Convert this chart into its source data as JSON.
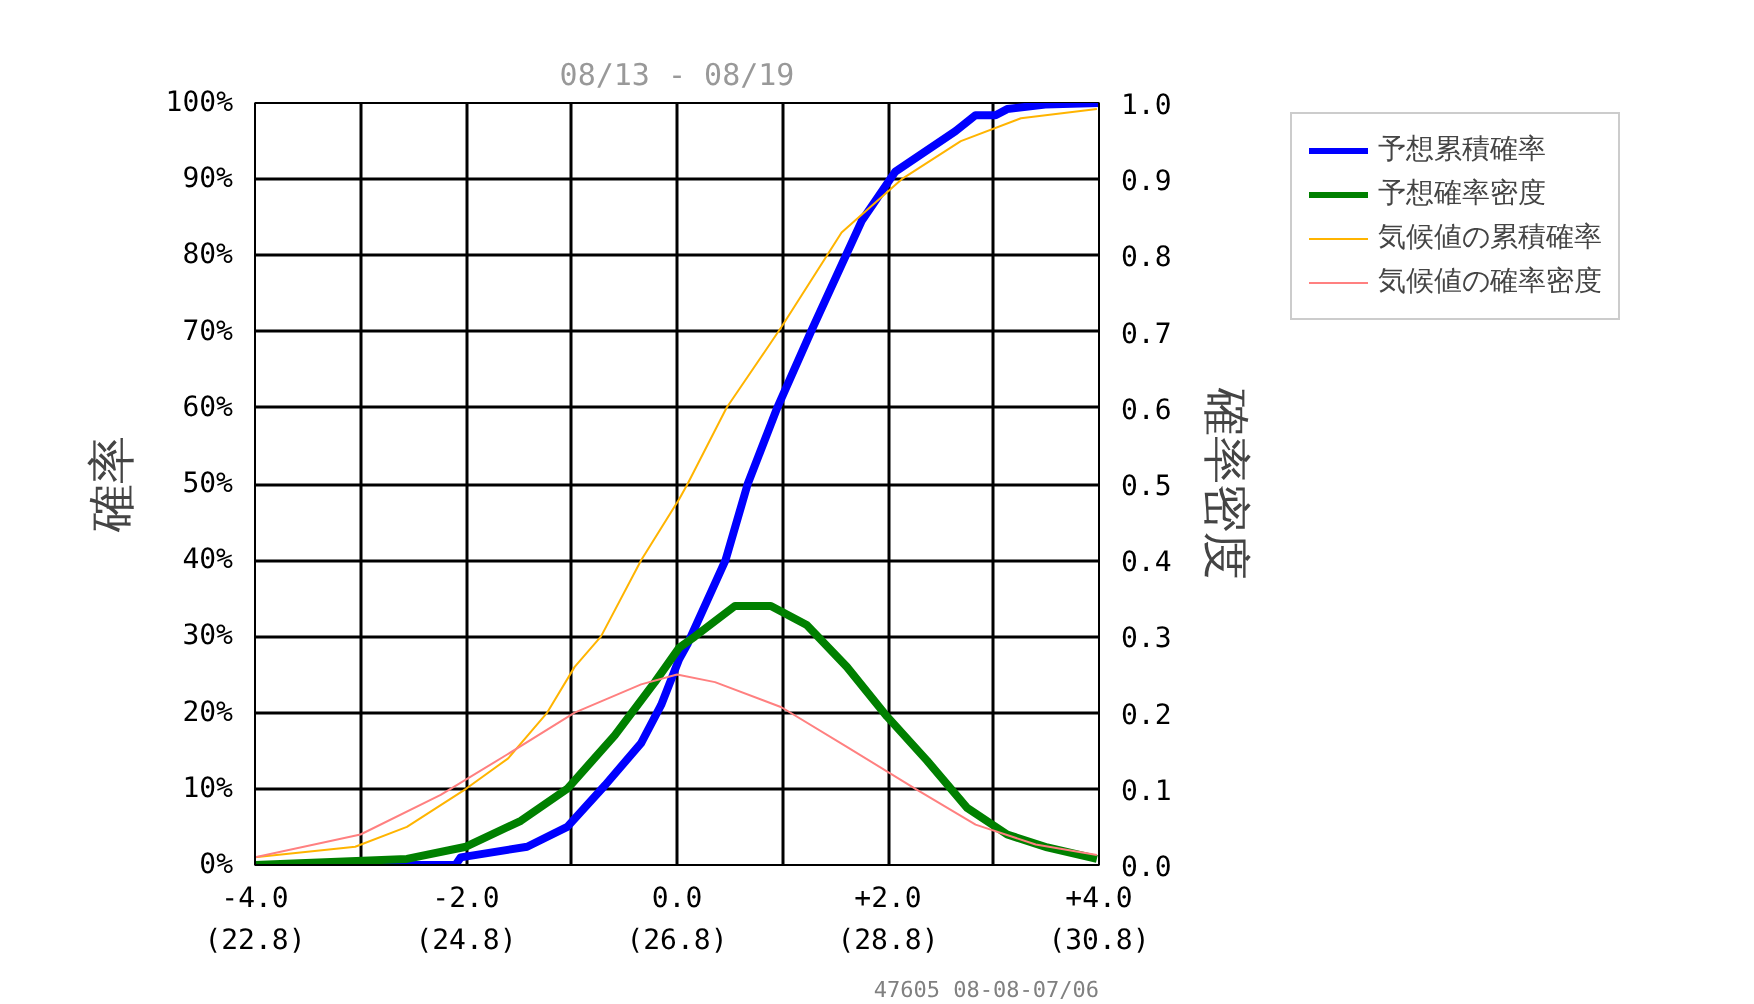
{
  "chart_data": {
    "type": "line",
    "title": "08/13 - 08/19",
    "ylabel": "確率",
    "y2label": "確率密度",
    "xlim": [
      -4,
      4
    ],
    "xticks": [
      {
        "value": -4,
        "label": "-4.0"
      },
      {
        "value": -3,
        "label": null
      },
      {
        "value": -2,
        "label": "-2.0"
      },
      {
        "value": -1,
        "label": null
      },
      {
        "value": 0,
        "label": "0.0"
      },
      {
        "value": 1,
        "label": null
      },
      {
        "value": 2,
        "label": "+2.0"
      },
      {
        "value": 3,
        "label": null
      },
      {
        "value": 4,
        "label": "+4.0"
      }
    ],
    "x2lim": [
      22.8,
      30.8
    ],
    "x2ticks": [
      {
        "value": 22.8,
        "label": "(22.8)"
      },
      {
        "value": 24.8,
        "label": "(24.8)"
      },
      {
        "value": 26.8,
        "label": "(26.8)"
      },
      {
        "value": 28.8,
        "label": "(28.8)"
      },
      {
        "value": 30.8,
        "label": "(30.8)"
      }
    ],
    "ylim": [
      0,
      100
    ],
    "yticks": [
      {
        "value": 0,
        "label": "0%"
      },
      {
        "value": 10,
        "label": "10%"
      },
      {
        "value": 20,
        "label": "20%"
      },
      {
        "value": 30,
        "label": "30%"
      },
      {
        "value": 40,
        "label": "40%"
      },
      {
        "value": 50,
        "label": "50%"
      },
      {
        "value": 60,
        "label": "60%"
      },
      {
        "value": 70,
        "label": "70%"
      },
      {
        "value": 80,
        "label": "80%"
      },
      {
        "value": 90,
        "label": "90%"
      },
      {
        "value": 100,
        "label": "100%"
      }
    ],
    "y2lim": [
      0,
      1
    ],
    "y2ticks": [
      {
        "value": 0,
        "label": "0.0"
      },
      {
        "value": 0.1,
        "label": "0.1"
      },
      {
        "value": 0.2,
        "label": "0.2"
      },
      {
        "value": 0.3,
        "label": "0.3"
      },
      {
        "value": 0.4,
        "label": "0.4"
      },
      {
        "value": 0.5,
        "label": "0.5"
      },
      {
        "value": 0.6,
        "label": "0.6"
      },
      {
        "value": 0.7,
        "label": "0.7"
      },
      {
        "value": 0.8,
        "label": "0.8"
      },
      {
        "value": 0.9,
        "label": "0.9"
      },
      {
        "value": 1,
        "label": "1.0"
      }
    ],
    "grid": true,
    "legend": "top right",
    "annotations": [
      "47605 08-08-07/06"
    ],
    "series": [
      {
        "name": "予想累積確率",
        "color": "#0000ff",
        "x": [
          -4,
          -2.1,
          -2.05,
          -1.42,
          -1.04,
          -0.68,
          -0.34,
          -0.15,
          0.02,
          0.1,
          0.46,
          0.67,
          0.95,
          1.27,
          1.75,
          2.07,
          2.64,
          2.83,
          3.02,
          3.13,
          3.49,
          4
        ],
        "values": [
          0,
          0,
          1,
          2.4,
          5,
          10.5,
          16,
          21,
          27,
          29,
          40,
          50,
          60,
          70,
          84.5,
          91,
          96.3,
          98.4,
          98.4,
          99.2,
          99.8,
          100
        ]
      },
      {
        "name": "予想確率密度",
        "color": "#008000",
        "axis": "y2",
        "x": [
          -4,
          -2.56,
          -2,
          -1.48,
          -1.04,
          -0.59,
          -0.21,
          0.02,
          0.17,
          0.55,
          0.89,
          1.23,
          1.61,
          1.99,
          2.37,
          2.75,
          3.13,
          3.51,
          3.98
        ],
        "values": [
          0,
          0.008,
          0.024,
          0.058,
          0.1,
          0.17,
          0.24,
          0.285,
          0.3,
          0.34,
          0.34,
          0.315,
          0.26,
          0.195,
          0.137,
          0.075,
          0.04,
          0.023,
          0.008
        ]
      },
      {
        "name": "気候値の累積確率",
        "color": "#ffb400",
        "x": [
          -4,
          -3.05,
          -2.56,
          -2,
          -1.6,
          -1.23,
          -0.97,
          -0.72,
          -0.34,
          0.02,
          0.1,
          0.47,
          0.99,
          1.56,
          2.13,
          2.69,
          3.26,
          3.98
        ],
        "values": [
          1,
          2.4,
          5,
          10,
          14,
          20,
          26,
          30,
          40,
          48,
          50,
          60,
          70.6,
          83,
          90,
          95,
          98,
          99.2
        ]
      },
      {
        "name": "気候値の確率密度",
        "color": "#ff8080",
        "axis": "y2",
        "x": [
          -4,
          -3,
          -2.24,
          -1.61,
          -0.97,
          -0.34,
          0,
          0.36,
          0.99,
          1.61,
          2.26,
          2.83,
          3.4,
          3.98
        ],
        "values": [
          0.01,
          0.04,
          0.092,
          0.145,
          0.2,
          0.237,
          0.25,
          0.24,
          0.207,
          0.155,
          0.1,
          0.053,
          0.027,
          0.013
        ]
      }
    ]
  }
}
